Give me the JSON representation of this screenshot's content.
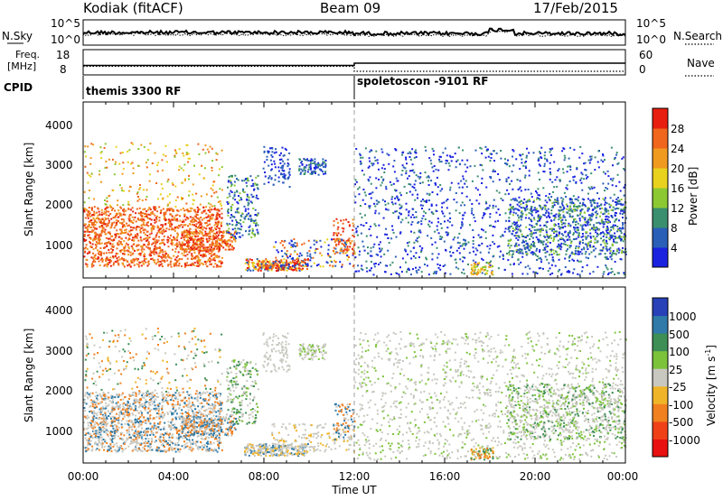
{
  "chart_data": [
    {
      "type": "line",
      "header": {
        "station": "Kodiak (fitACF)",
        "beam": "Beam 09",
        "date": "17/Feb/2015"
      },
      "left_label": "N.Sky",
      "right_label": "N.Search",
      "yticks_left": [
        "10^5",
        "10^0"
      ],
      "yticks_right": [
        "10^5",
        "10^0"
      ]
    },
    {
      "type": "line",
      "left_label_line1": "Freq.",
      "left_label_line2": "[MHz]",
      "right_label": "Nave",
      "yticks_left": [
        "18",
        "8"
      ],
      "yticks_right": [
        "60",
        "0"
      ]
    },
    {
      "type": "table",
      "label": "CPID",
      "segments": [
        {
          "text": "themis 3300 RF",
          "start": "00:00"
        },
        {
          "text": "spoletoscon -9101 RF",
          "start": "12:00"
        }
      ]
    },
    {
      "type": "heatmap",
      "quantity": "power",
      "ylabel": "Slant Range [km]",
      "yticks": [
        "1000",
        "2000",
        "3000",
        "4000"
      ],
      "ylim": [
        200,
        4600
      ],
      "colorbar": {
        "label": "Power [dB]",
        "ticks": [
          "4",
          "8",
          "12",
          "16",
          "20",
          "24",
          "28"
        ],
        "colors": [
          "#1a22e0",
          "#2a5fb8",
          "#3a8f6e",
          "#8cc832",
          "#e8d21e",
          "#f09a20",
          "#f0661c",
          "#e81e10"
        ]
      }
    },
    {
      "type": "heatmap",
      "quantity": "velocity",
      "ylabel": "Slant Range [km]",
      "yticks": [
        "1000",
        "2000",
        "3000",
        "4000"
      ],
      "ylim": [
        200,
        4600
      ],
      "xlabel": "Time UT",
      "xticks": [
        "00:00",
        "04:00",
        "08:00",
        "12:00",
        "16:00",
        "20:00",
        "00:00"
      ],
      "colorbar": {
        "label": "Velocity [m s",
        "label_sup": "-1",
        "label_end": "]",
        "ticks": [
          "1000",
          "500",
          "100",
          "25",
          "-25",
          "-100",
          "-500",
          "-1000"
        ],
        "colors": [
          "#2840b8",
          "#2f7aa8",
          "#3d8f55",
          "#7cc33a",
          "#c8c8c0",
          "#f0b428",
          "#f08020",
          "#f04018",
          "#e81010"
        ]
      }
    }
  ]
}
